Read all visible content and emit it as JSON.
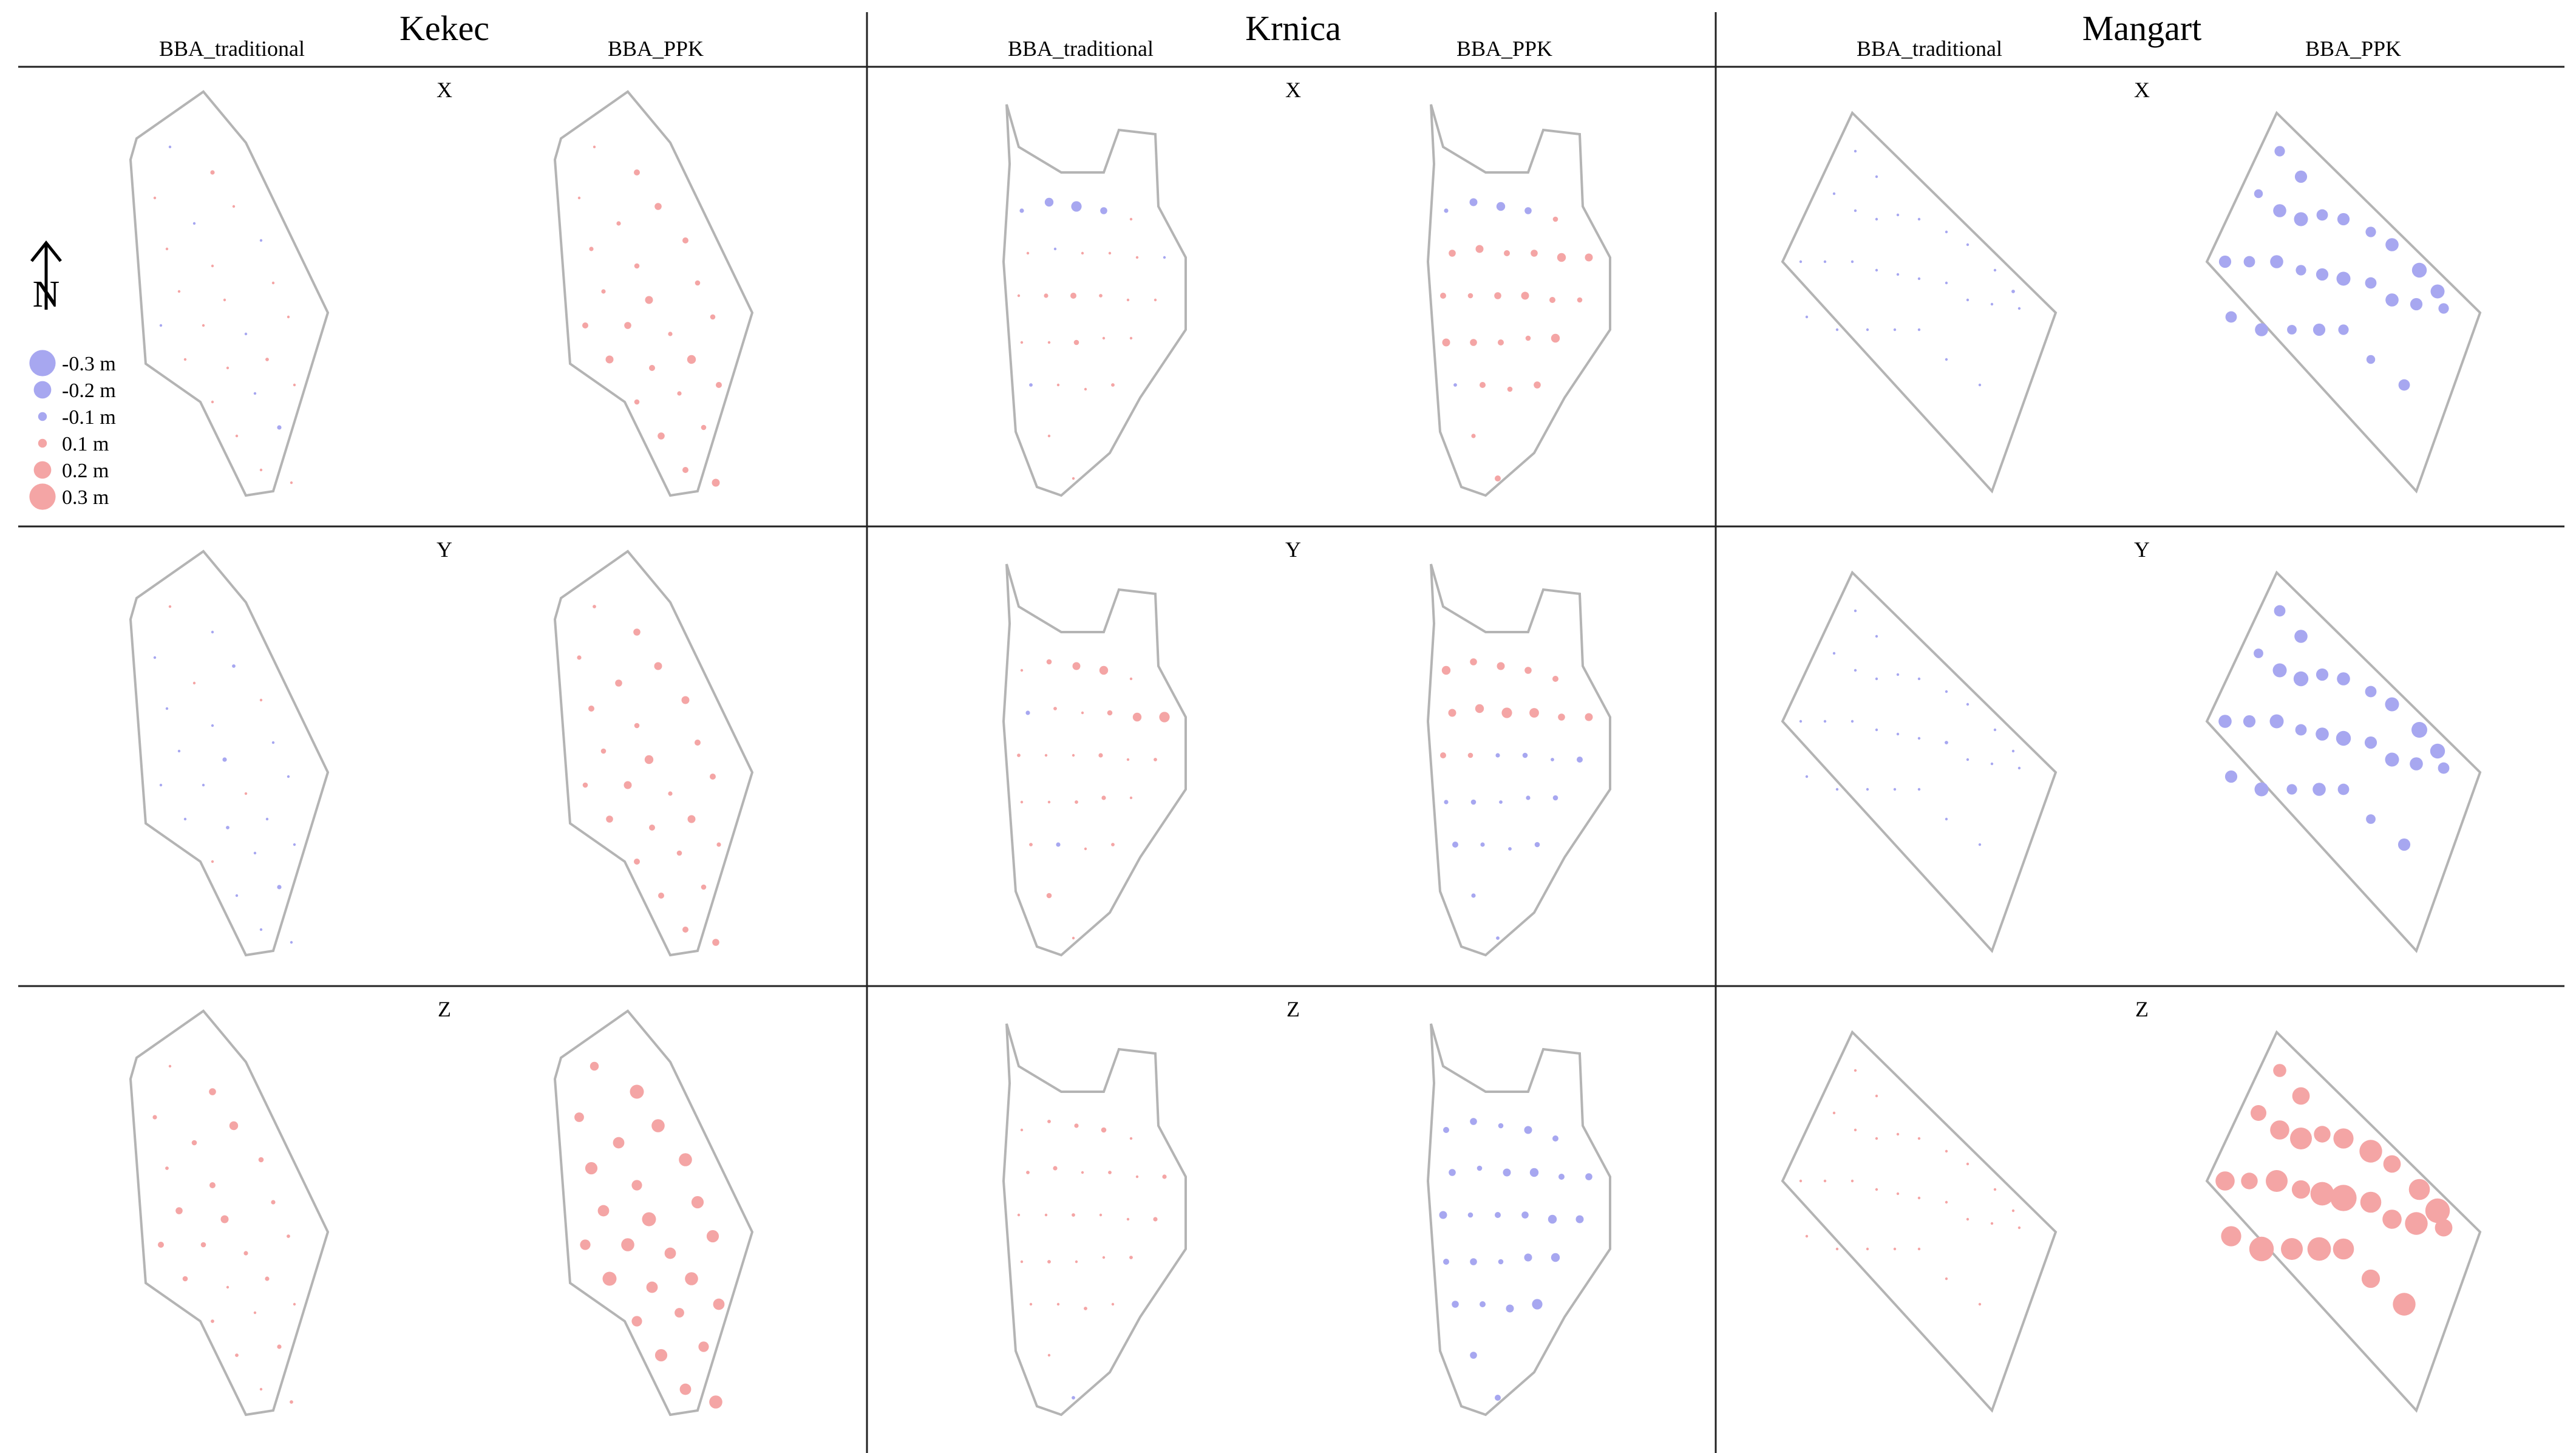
{
  "sites": [
    {
      "name": "Kekec",
      "shape": "kekec",
      "method_labels": [
        "BBA_traditional",
        "BBA_PPK"
      ],
      "rows": [
        {
          "component": "X",
          "traditional": [
            -0.01,
            0.05,
            0.01,
            -0.02,
            0.02,
            0.03,
            0.02,
            -0.02,
            0.01,
            0.02,
            0.01,
            -0.02,
            0.02,
            -0.01,
            0.01,
            0.02,
            0.01,
            0.04,
            0.02,
            -0.01,
            0.01,
            0.02,
            -0.05,
            0.01,
            0.02
          ],
          "ppk": [
            0.02,
            0.07,
            0.03,
            0.05,
            0.08,
            0.05,
            0.06,
            0.07,
            0.05,
            0.09,
            0.06,
            0.07,
            0.08,
            0.05,
            0.06,
            0.09,
            0.07,
            0.1,
            0.06,
            0.05,
            0.07,
            0.08,
            0.06,
            0.07,
            0.09
          ]
        },
        {
          "component": "Y",
          "traditional": [
            0.01,
            -0.02,
            -0.02,
            0.02,
            -0.04,
            -0.01,
            -0.02,
            0.02,
            -0.02,
            -0.05,
            -0.03,
            -0.02,
            -0.03,
            0.02,
            -0.03,
            -0.02,
            -0.04,
            -0.02,
            0.02,
            -0.01,
            -0.02,
            -0.03,
            -0.05,
            -0.02,
            -0.01
          ],
          "ppk": [
            0.04,
            0.08,
            0.05,
            0.08,
            0.09,
            0.07,
            0.06,
            0.09,
            0.06,
            0.1,
            0.07,
            0.06,
            0.09,
            0.05,
            0.07,
            0.08,
            0.07,
            0.09,
            0.07,
            0.06,
            0.05,
            0.07,
            0.06,
            0.07,
            0.08
          ]
        },
        {
          "component": "Z",
          "traditional": [
            0.03,
            0.08,
            0.05,
            0.06,
            0.1,
            0.04,
            0.07,
            0.06,
            0.08,
            0.09,
            0.05,
            0.07,
            0.06,
            0.05,
            0.04,
            0.06,
            0.03,
            0.05,
            0.04,
            0.02,
            0.03,
            0.04,
            0.05,
            0.03,
            0.04
          ],
          "ppk": [
            0.1,
            0.16,
            0.11,
            0.13,
            0.15,
            0.14,
            0.12,
            0.15,
            0.13,
            0.16,
            0.14,
            0.12,
            0.15,
            0.13,
            0.14,
            0.16,
            0.13,
            0.15,
            0.12,
            0.11,
            0.13,
            0.14,
            0.12,
            0.13,
            0.15
          ]
        }
      ]
    },
    {
      "name": "Krnica",
      "shape": "krnica",
      "method_labels": [
        "BBA_traditional",
        "BBA_PPK"
      ],
      "rows": [
        {
          "component": "X",
          "traditional": [
            -0.05,
            -0.1,
            -0.12,
            -0.08,
            0.02,
            0.03,
            -0.02,
            0.01,
            0.02,
            0.01,
            -0.03,
            0.02,
            0.05,
            0.07,
            0.04,
            0.02,
            0.03,
            0.01,
            0.02,
            0.06,
            0.03,
            0.02,
            -0.04,
            0.03,
            0.02,
            0.04,
            0.01,
            0.02
          ],
          "ppk": [
            -0.05,
            -0.09,
            -0.1,
            -0.08,
            0.06,
            0.08,
            0.09,
            0.07,
            0.08,
            0.1,
            0.09,
            0.07,
            0.06,
            0.08,
            0.09,
            0.07,
            0.06,
            0.09,
            0.08,
            0.07,
            0.06,
            0.1,
            -0.04,
            0.07,
            0.06,
            0.08,
            0.05,
            0.07
          ]
        },
        {
          "component": "Y",
          "traditional": [
            0.02,
            0.06,
            0.09,
            0.1,
            0.03,
            -0.05,
            0.04,
            0.03,
            0.06,
            0.1,
            0.12,
            0.04,
            0.03,
            0.02,
            0.05,
            0.03,
            0.04,
            0.02,
            0.03,
            0.04,
            0.05,
            0.03,
            0.04,
            -0.05,
            0.03,
            0.04,
            0.06,
            0.03
          ],
          "ppk": [
            0.1,
            0.08,
            0.09,
            0.08,
            0.07,
            0.09,
            0.1,
            0.12,
            0.11,
            0.08,
            0.09,
            0.07,
            0.06,
            -0.05,
            -0.06,
            -0.04,
            -0.07,
            -0.05,
            -0.06,
            -0.04,
            -0.05,
            -0.06,
            -0.07,
            -0.05,
            -0.04,
            -0.06,
            -0.05,
            -0.04
          ]
        },
        {
          "component": "Z",
          "traditional": [
            0.03,
            0.04,
            0.05,
            0.06,
            0.03,
            0.04,
            0.05,
            0.02,
            0.04,
            0.03,
            0.05,
            0.02,
            0.03,
            0.04,
            0.02,
            0.03,
            0.05,
            0.02,
            0.04,
            0.03,
            0.02,
            0.04,
            0.03,
            0.02,
            0.04,
            0.03,
            0.02,
            -0.04
          ],
          "ppk": [
            -0.07,
            -0.08,
            -0.06,
            -0.09,
            -0.07,
            -0.08,
            -0.06,
            -0.09,
            -0.1,
            -0.07,
            -0.08,
            -0.09,
            -0.06,
            -0.07,
            -0.08,
            -0.1,
            -0.09,
            -0.07,
            -0.08,
            -0.06,
            -0.09,
            -0.1,
            -0.08,
            -0.07,
            -0.09,
            -0.12,
            -0.08,
            -0.07
          ]
        }
      ]
    },
    {
      "name": "Mangart",
      "shape": "mangart",
      "method_labels": [
        "BBA_traditional",
        "BBA_PPK"
      ],
      "rows": [
        {
          "component": "X",
          "traditional": [
            -0.01,
            -0.02,
            -0.01,
            -0.03,
            -0.02,
            -0.01,
            -0.02,
            -0.03,
            -0.01,
            -0.02,
            -0.04,
            -0.02,
            -0.01,
            -0.03,
            -0.02,
            -0.01,
            -0.02,
            -0.03,
            -0.01,
            -0.02,
            -0.03,
            -0.02,
            -0.01,
            -0.02,
            -0.03,
            -0.01,
            -0.02,
            -0.01
          ],
          "ppk": [
            -0.12,
            -0.14,
            -0.1,
            -0.15,
            -0.16,
            -0.13,
            -0.14,
            -0.12,
            -0.15,
            -0.17,
            -0.16,
            -0.14,
            -0.13,
            -0.15,
            -0.12,
            -0.14,
            -0.16,
            -0.13,
            -0.15,
            -0.14,
            -0.12,
            -0.13,
            -0.15,
            -0.11,
            -0.14,
            -0.12,
            -0.1,
            -0.13
          ]
        },
        {
          "component": "Y",
          "traditional": [
            -0.02,
            -0.01,
            -0.03,
            -0.02,
            -0.01,
            -0.02,
            -0.03,
            -0.01,
            -0.02,
            -0.01,
            -0.03,
            -0.02,
            -0.01,
            -0.02,
            -0.03,
            -0.01,
            -0.02,
            -0.04,
            -0.02,
            -0.01,
            -0.03,
            -0.02,
            -0.01,
            -0.02,
            -0.03,
            -0.01,
            -0.02,
            -0.01
          ],
          "ppk": [
            -0.13,
            -0.15,
            -0.11,
            -0.16,
            -0.17,
            -0.14,
            -0.15,
            -0.13,
            -0.16,
            -0.18,
            -0.17,
            -0.15,
            -0.14,
            -0.16,
            -0.13,
            -0.15,
            -0.17,
            -0.14,
            -0.16,
            -0.15,
            -0.13,
            -0.14,
            -0.16,
            -0.12,
            -0.15,
            -0.13,
            -0.11,
            -0.14
          ]
        },
        {
          "component": "Z",
          "traditional": [
            0.01,
            0.02,
            0.01,
            0.02,
            0.03,
            0.01,
            0.02,
            0.01,
            0.02,
            0.03,
            0.01,
            0.02,
            0.01,
            0.02,
            0.03,
            0.01,
            0.02,
            0.01,
            0.02,
            0.03,
            0.01,
            0.02,
            0.01,
            0.02,
            0.01,
            0.02,
            0.03,
            0.01
          ],
          "ppk": [
            0.15,
            0.2,
            0.18,
            0.22,
            0.25,
            0.19,
            0.23,
            0.26,
            0.2,
            0.24,
            0.28,
            0.22,
            0.19,
            0.25,
            0.21,
            0.27,
            0.3,
            0.24,
            0.22,
            0.26,
            0.2,
            0.23,
            0.28,
            0.25,
            0.27,
            0.24,
            0.21,
            0.26
          ]
        }
      ]
    }
  ],
  "legend": {
    "items": [
      {
        "label": "-0.3 m",
        "value": -0.3
      },
      {
        "label": "-0.2 m",
        "value": -0.2
      },
      {
        "label": "-0.1 m",
        "value": -0.1
      },
      {
        "label": "0.1 m",
        "value": 0.1
      },
      {
        "label": "0.2 m",
        "value": 0.2
      },
      {
        "label": "0.3 m",
        "value": 0.3
      }
    ],
    "north_letter": "N"
  },
  "colors": {
    "positive": "#f4a5a5",
    "negative": "#a7a7f0",
    "outline": "#b4b4b4",
    "grid": "#222222"
  }
}
